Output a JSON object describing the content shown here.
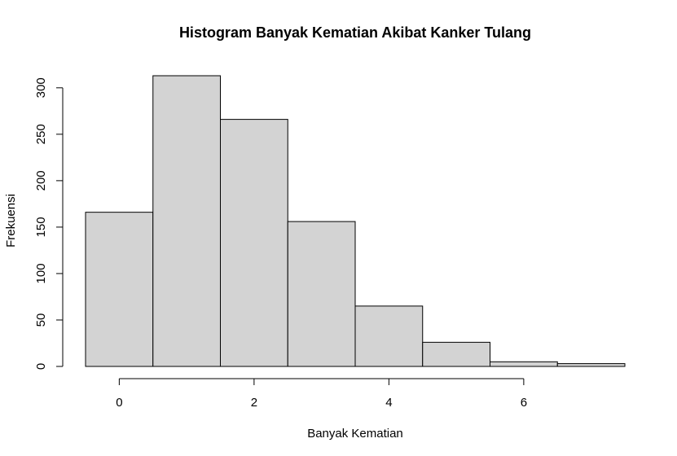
{
  "chart_data": {
    "type": "bar",
    "title": "Histogram Banyak Kematian Akibat Kanker Tulang",
    "xlabel": "Banyak Kematian",
    "ylabel": "Frekuensi",
    "bins": [
      {
        "x_start": -0.5,
        "x_end": 0.5,
        "value": 166
      },
      {
        "x_start": 0.5,
        "x_end": 1.5,
        "value": 313
      },
      {
        "x_start": 1.5,
        "x_end": 2.5,
        "value": 266
      },
      {
        "x_start": 2.5,
        "x_end": 3.5,
        "value": 156
      },
      {
        "x_start": 3.5,
        "x_end": 4.5,
        "value": 65
      },
      {
        "x_start": 4.5,
        "x_end": 5.5,
        "value": 26
      },
      {
        "x_start": 5.5,
        "x_end": 6.5,
        "value": 5
      },
      {
        "x_start": 6.5,
        "x_end": 7.5,
        "value": 3
      }
    ],
    "xlim": [
      -0.5,
      7.5
    ],
    "ylim": [
      0,
      313
    ],
    "x_ticks": [
      0,
      2,
      4,
      6
    ],
    "y_ticks": [
      0,
      50,
      100,
      150,
      200,
      250,
      300
    ],
    "bar_color": "#d3d3d3",
    "edge_color": "#000000",
    "grid": false,
    "legend": "none"
  }
}
